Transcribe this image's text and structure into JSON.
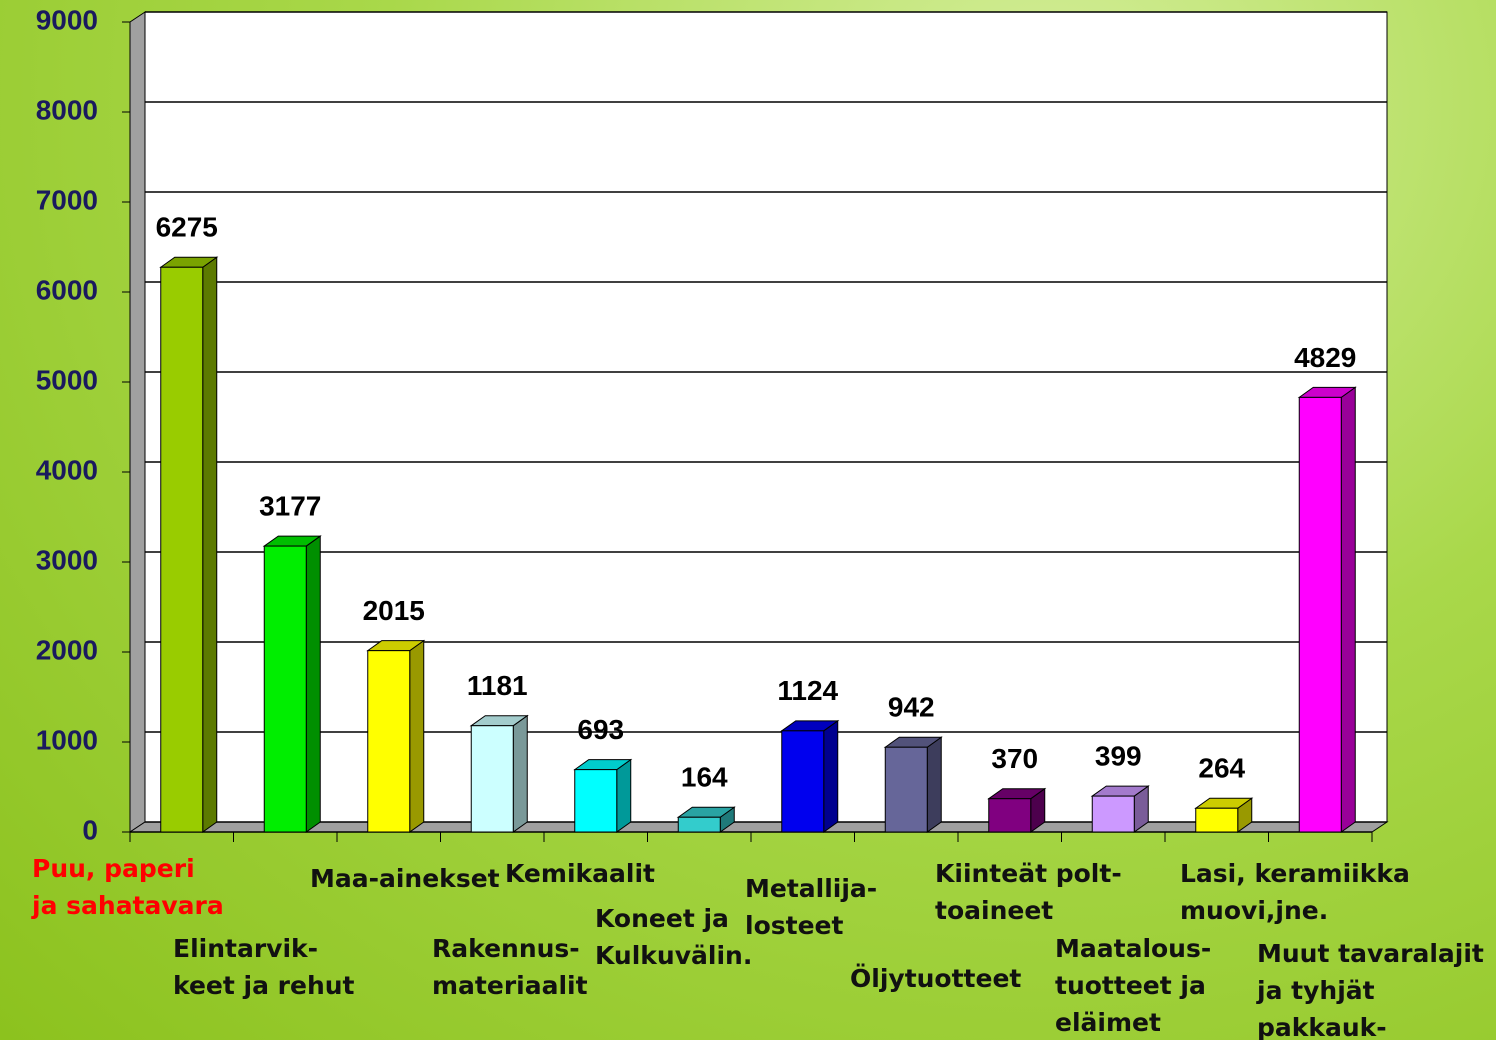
{
  "chart_data": {
    "type": "bar",
    "categories": [
      "Puu, paperi\nja sahatavara",
      "Elintarvik-\nkeet ja rehut",
      "Maa-ainekset",
      "Rakennus-\nmateriaalit",
      "Kemikaalit",
      "Koneet ja\nKulkuvälin.",
      "Metallija-\nlosteet",
      "Öljytuotteet",
      "Kiinteät polt-\ntoaineet",
      "Maatalous-\ntuotteet ja\neläimet",
      "Lasi, keramiikka\nmuovi,jne.",
      "Muut tavaralajit\nja tyhjät pakkauk-\nset, kontit, jne."
    ],
    "values": [
      6275,
      3177,
      2015,
      1181,
      693,
      164,
      1124,
      942,
      370,
      399,
      264,
      4829
    ],
    "colors": [
      "#99cc00",
      "#00ee00",
      "#ffff00",
      "#ccffff",
      "#00ffff",
      "#33cccc",
      "#0000ee",
      "#666699",
      "#800080",
      "#cc99ff",
      "#ffff00",
      "#ff00ff"
    ],
    "highlight_color": "#ff0000",
    "ylim": [
      0,
      9000
    ],
    "yticks": [
      0,
      1000,
      2000,
      3000,
      4000,
      5000,
      6000,
      7000,
      8000,
      9000
    ],
    "grid": true
  }
}
